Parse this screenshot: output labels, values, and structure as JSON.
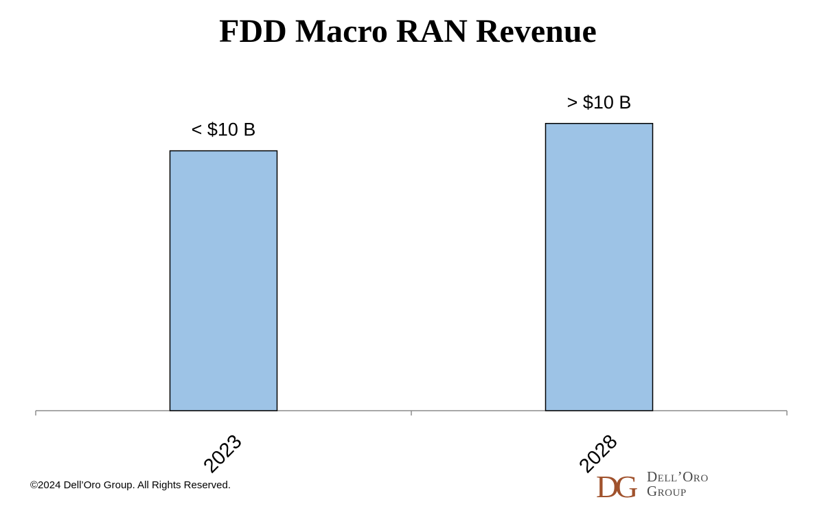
{
  "chart_data": {
    "type": "bar",
    "title": "FDD Macro RAN Revenue",
    "categories": [
      "2023",
      "2028"
    ],
    "values": [
      9.5,
      10.5
    ],
    "data_labels": [
      "< $10 B",
      "> $10 B"
    ],
    "xlabel": "",
    "ylabel": "",
    "ylim": [
      0,
      12
    ],
    "grid": false,
    "legend": "none",
    "bar_color": "#9dc3e6",
    "bar_edge_color": "#000000"
  },
  "footer": {
    "copyright": "©2024 Dell’Oro Group. All Rights Reserved."
  },
  "logo": {
    "line1": "Dell’Oro",
    "line2": "Group",
    "accent_color": "#a0522d"
  }
}
